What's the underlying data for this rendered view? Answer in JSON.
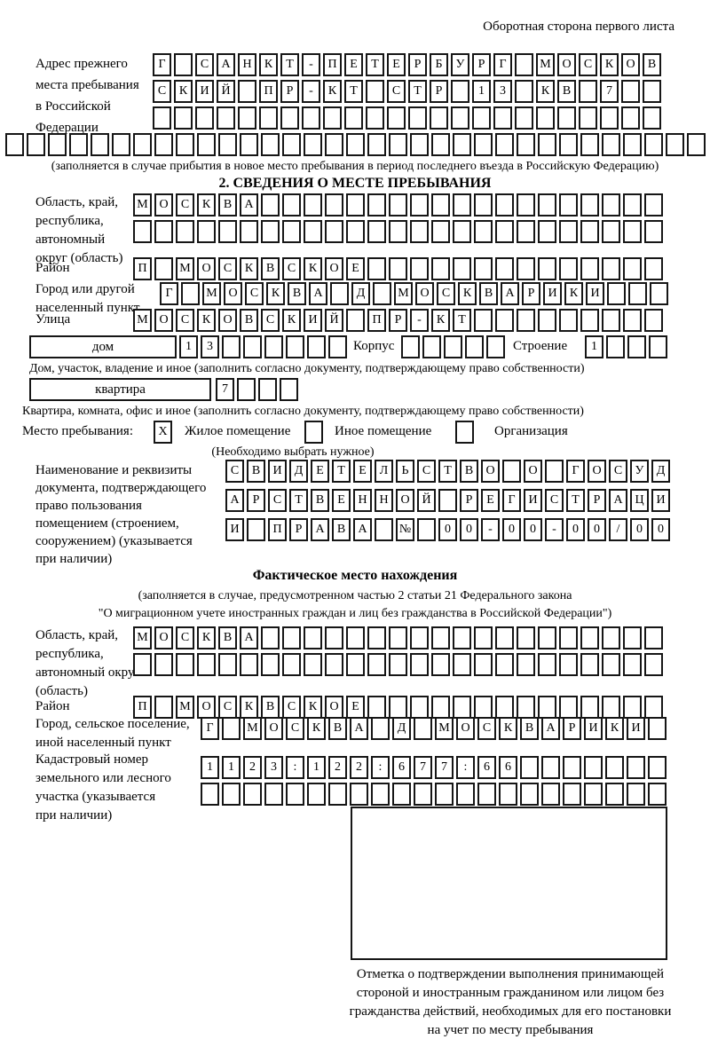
{
  "header": {
    "back_note": "Оборотная сторона первого листа"
  },
  "prev_address": {
    "label_lines": [
      "Адрес прежнего",
      "места пребывания",
      "в Российской",
      "Федерации"
    ],
    "rows": [
      {
        "text": "Г САНКТ-ПЕТЕРБУРГ МОСКОВ",
        "len": 24
      },
      {
        "text": "СКИЙ ПР-КТ СТР 13 КВ 7",
        "len": 24
      },
      {
        "text": "",
        "len": 24
      },
      {
        "text": "",
        "len": 33
      }
    ],
    "note": "(заполняется в случае прибытия в новое место пребывания в период последнего въезда в Российскую Федерацию)"
  },
  "section2": {
    "title": "2. СВЕДЕНИЯ О МЕСТЕ ПРЕБЫВАНИЯ",
    "region": {
      "label_lines": [
        "Область, край,",
        "республика,",
        "автономный",
        "округ (область)"
      ],
      "rows": [
        {
          "text": "МОСКВА",
          "len": 25
        },
        {
          "text": "",
          "len": 25
        }
      ]
    },
    "district": {
      "label": "Район",
      "row": {
        "text": "П МОСКВСКОЕ",
        "len": 25
      }
    },
    "city": {
      "label_lines": [
        "Город или другой",
        "населенный пункт"
      ],
      "row": {
        "text": "Г МОСКВА Д МОСКВАРИКИ",
        "len": 24
      }
    },
    "street": {
      "label": "Улица",
      "row": {
        "text": "МОСКОВСКИЙ ПР-КТ",
        "len": 25
      }
    },
    "house": {
      "box_label": "дом",
      "cells": {
        "text": "13",
        "len": 8
      },
      "korpus_label": "Корпус",
      "korpus_cells": {
        "text": "",
        "len": 5
      },
      "stroenie_label": "Строение",
      "stroenie_cells": {
        "text": "1",
        "len": 4
      },
      "hint": "Дом, участок, владение и иное (заполнить согласно документу, подтверждающему право собственности)"
    },
    "apartment": {
      "box_label": "квартира",
      "cells": {
        "text": "7",
        "len": 4
      },
      "hint": "Квартира, комната, офис и иное (заполнить согласно документу, подтверждающему право собственности)"
    },
    "stay_type": {
      "label": "Место пребывания:",
      "options": [
        {
          "mark": "X",
          "label": "Жилое помещение"
        },
        {
          "mark": "",
          "label": "Иное помещение"
        },
        {
          "mark": "",
          "label": "Организация"
        }
      ],
      "note": "(Необходимо выбрать нужное)"
    },
    "document": {
      "label_lines": [
        "Наименование и реквизиты",
        "документа, подтверждающего",
        "право пользования",
        "помещением (строением,",
        "сооружением) (указывается",
        "при наличии)"
      ],
      "rows": [
        {
          "text": "СВИДЕТЕЛЬСТВО О ГОСУД",
          "len": 21
        },
        {
          "text": "АРСТВЕННОЙ РЕГИСТРАЦИ",
          "len": 21
        },
        {
          "text": "И ПРАВА № 00-00-00/000",
          "len": 21
        }
      ]
    }
  },
  "actual_location": {
    "title": "Фактическое место нахождения",
    "note_lines": [
      "(заполняется в случае, предусмотренном частью 2 статьи 21 Федерального закона",
      "\"О миграционном учете иностранных граждан и лиц без гражданства в Российской Федерации\")"
    ],
    "region": {
      "label_lines": [
        "Область, край,",
        "республика,",
        "автономный округ",
        "(область)"
      ],
      "rows": [
        {
          "text": "МОСКВА",
          "len": 25
        },
        {
          "text": "",
          "len": 25
        }
      ]
    },
    "district": {
      "label": "Район",
      "row": {
        "text": "П МОСКВСКОЕ",
        "len": 25
      }
    },
    "city": {
      "label_lines": [
        "Город, сельское поселение,",
        "иной населенный пункт"
      ],
      "row": {
        "text": "Г МОСКВА Д МОСКВАРИКИ",
        "len": 22
      }
    },
    "cadastral": {
      "label_lines": [
        "Кадастровый номер",
        "земельного или лесного",
        "участка (указывается",
        "при наличии)"
      ],
      "rows": [
        {
          "text": "1123:122:677:66",
          "len": 22
        },
        {
          "text": "",
          "len": 22
        }
      ]
    }
  },
  "stamp": {
    "caption_lines": [
      "Отметка о подтверждении выполнения принимающей",
      "стороной и иностранным гражданином или лицом без",
      "гражданства действий, необходимых для его постановки",
      "на учет по месту пребывания"
    ]
  }
}
